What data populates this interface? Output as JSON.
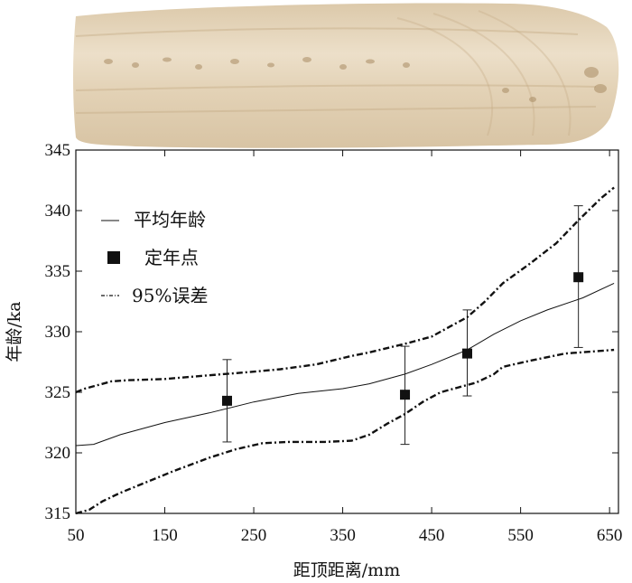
{
  "chart_data": {
    "type": "line",
    "xlabel": "距顶距离/mm",
    "ylabel": "年龄/ka",
    "xlim": [
      50,
      660
    ],
    "ylim": [
      315,
      345
    ],
    "x_ticks": [
      50,
      150,
      250,
      350,
      450,
      550,
      650
    ],
    "y_ticks": [
      315,
      320,
      325,
      330,
      335,
      340,
      345
    ],
    "grid": false,
    "legend_position": "top-left",
    "legend": [
      "平均年龄",
      "定年点",
      "95%误差"
    ],
    "series": [
      {
        "name": "平均年龄",
        "style": "solid-thin",
        "x": [
          50,
          70,
          100,
          150,
          200,
          250,
          300,
          350,
          380,
          420,
          450,
          490,
          520,
          550,
          580,
          620,
          655
        ],
        "y": [
          320.6,
          320.7,
          321.5,
          322.5,
          323.3,
          324.2,
          324.9,
          325.3,
          325.7,
          326.5,
          327.3,
          328.5,
          329.8,
          330.9,
          331.8,
          332.8,
          334.0
        ]
      },
      {
        "name": "定年点",
        "style": "square-marker-with-error-bars",
        "x": [
          220,
          420,
          490,
          615
        ],
        "y": [
          324.3,
          324.8,
          328.2,
          334.5
        ],
        "error_low": [
          320.9,
          320.7,
          324.7,
          328.7
        ],
        "error_high": [
          327.7,
          328.8,
          331.8,
          340.4
        ]
      },
      {
        "name": "95%误差",
        "style": "dashed-upper",
        "x": [
          50,
          60,
          75,
          90,
          110,
          150,
          200,
          250,
          280,
          320,
          360,
          380,
          420,
          450,
          470,
          490,
          510,
          530,
          560,
          590,
          615,
          640,
          655
        ],
        "y": [
          325.0,
          325.3,
          325.6,
          325.9,
          326.0,
          326.1,
          326.4,
          326.7,
          326.9,
          327.3,
          328.0,
          328.3,
          329.0,
          329.6,
          330.4,
          331.2,
          332.5,
          334.0,
          335.6,
          337.3,
          339.2,
          341.0,
          341.9
        ]
      },
      {
        "name": "95%误差",
        "style": "dashed-lower",
        "x": [
          50,
          65,
          80,
          100,
          130,
          160,
          200,
          230,
          260,
          290,
          330,
          360,
          380,
          400,
          420,
          440,
          460,
          480,
          500,
          520,
          530,
          560,
          600,
          655
        ],
        "y": [
          315.0,
          315.3,
          316.0,
          316.7,
          317.6,
          318.5,
          319.6,
          320.3,
          320.8,
          320.9,
          320.9,
          321.0,
          321.5,
          322.4,
          323.2,
          324.2,
          325.0,
          325.4,
          325.8,
          326.5,
          327.1,
          327.6,
          328.2,
          328.5
        ]
      }
    ]
  },
  "colors": {
    "ink": "#111111",
    "photo_base": "#e6d6bc"
  }
}
